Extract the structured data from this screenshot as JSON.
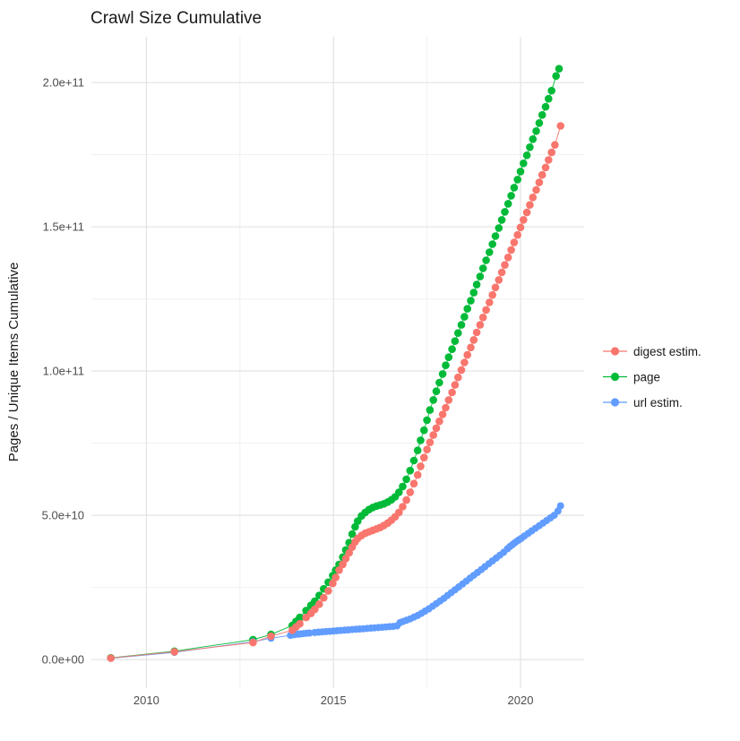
{
  "title": "Crawl Size Cumulative",
  "style": {
    "background": "#ffffff",
    "grid_major_color": "#e3e3e3",
    "grid_minor_color": "#f0f0f0",
    "tick_text_color": "#4d4d4d",
    "title_text_color": "#1a1a1a"
  },
  "chart_data": {
    "type": "scatter",
    "title": "Crawl Size Cumulative",
    "xlabel": "",
    "ylabel": "Pages / Unique Items Cumulative",
    "grid": true,
    "legend_position": "right",
    "xlim": [
      2008.53,
      2021.7
    ],
    "ylim_e9": [
      -9.9,
      215.9
    ],
    "x_ticks": {
      "major": [
        2010,
        2015,
        2020
      ],
      "labels": [
        "2010",
        "2015",
        "2020"
      ],
      "minor": [
        2012.5,
        2017.5
      ]
    },
    "y_ticks": {
      "major_e9": [
        0,
        50,
        100,
        150,
        200
      ],
      "labels": [
        "0.0e+00",
        "5.0e+10",
        "1.0e+11",
        "1.5e+11",
        "2.0e+11"
      ],
      "minor_e9": [
        25,
        75,
        125,
        175
      ]
    },
    "value_unit": "1e9",
    "series": [
      {
        "name": "digest estim.",
        "color": "#F8766D",
        "points_e9": [
          [
            2009.05,
            0.5
          ],
          [
            2010.75,
            2.7
          ],
          [
            2012.85,
            5.9
          ],
          [
            2013.33,
            8.1
          ],
          [
            2013.9,
            10.2
          ],
          [
            2014.0,
            11.3
          ],
          [
            2014.1,
            12.4
          ],
          [
            2014.27,
            14.6
          ],
          [
            2014.4,
            16.0
          ],
          [
            2014.5,
            17.4
          ],
          [
            2014.62,
            19.2
          ],
          [
            2014.74,
            21.4
          ],
          [
            2014.86,
            23.8
          ],
          [
            2014.98,
            26.4
          ],
          [
            2015.06,
            28.5
          ],
          [
            2015.15,
            31.0
          ],
          [
            2015.25,
            33.0
          ],
          [
            2015.33,
            35.0
          ],
          [
            2015.42,
            37.0
          ],
          [
            2015.5,
            39.0
          ],
          [
            2015.58,
            40.8
          ],
          [
            2015.65,
            42.0
          ],
          [
            2015.75,
            43.0
          ],
          [
            2015.85,
            43.8
          ],
          [
            2015.95,
            44.3
          ],
          [
            2016.05,
            44.8
          ],
          [
            2016.15,
            45.3
          ],
          [
            2016.25,
            45.8
          ],
          [
            2016.35,
            46.5
          ],
          [
            2016.45,
            47.3
          ],
          [
            2016.55,
            48.3
          ],
          [
            2016.65,
            49.5
          ],
          [
            2016.75,
            51.0
          ],
          [
            2016.85,
            53.0
          ],
          [
            2016.95,
            55.3
          ],
          [
            2017.05,
            58.0
          ],
          [
            2017.15,
            61.0
          ],
          [
            2017.25,
            64.0
          ],
          [
            2017.33,
            67.0
          ],
          [
            2017.42,
            70.0
          ],
          [
            2017.5,
            72.8
          ],
          [
            2017.58,
            75.3
          ],
          [
            2017.67,
            77.8
          ],
          [
            2017.75,
            80.2
          ],
          [
            2017.83,
            82.6
          ],
          [
            2017.92,
            85.0
          ],
          [
            2018.0,
            87.3
          ],
          [
            2018.08,
            90.0
          ],
          [
            2018.17,
            92.6
          ],
          [
            2018.25,
            95.2
          ],
          [
            2018.33,
            97.8
          ],
          [
            2018.42,
            100.4
          ],
          [
            2018.5,
            103.0
          ],
          [
            2018.58,
            105.6
          ],
          [
            2018.67,
            108.2
          ],
          [
            2018.75,
            110.8
          ],
          [
            2018.83,
            113.4
          ],
          [
            2018.92,
            116.0
          ],
          [
            2019.0,
            118.6
          ],
          [
            2019.08,
            121.2
          ],
          [
            2019.17,
            123.8
          ],
          [
            2019.25,
            126.4
          ],
          [
            2019.33,
            129.0
          ],
          [
            2019.42,
            131.6
          ],
          [
            2019.5,
            134.2
          ],
          [
            2019.58,
            136.8
          ],
          [
            2019.67,
            139.4
          ],
          [
            2019.75,
            142.0
          ],
          [
            2019.83,
            144.6
          ],
          [
            2019.92,
            147.2
          ],
          [
            2020.0,
            149.8
          ],
          [
            2020.08,
            152.4
          ],
          [
            2020.17,
            155.0
          ],
          [
            2020.25,
            157.6
          ],
          [
            2020.33,
            160.2
          ],
          [
            2020.42,
            162.8
          ],
          [
            2020.5,
            165.4
          ],
          [
            2020.58,
            168.0
          ],
          [
            2020.67,
            170.6
          ],
          [
            2020.75,
            173.2
          ],
          [
            2020.83,
            175.8
          ],
          [
            2020.92,
            178.4
          ],
          [
            2021.07,
            185.0
          ]
        ]
      },
      {
        "name": "page",
        "color": "#00BA38",
        "points_e9": [
          [
            2009.05,
            0.6
          ],
          [
            2010.75,
            2.9
          ],
          [
            2012.85,
            6.9
          ],
          [
            2013.33,
            8.7
          ],
          [
            2013.9,
            11.8
          ],
          [
            2014.0,
            13.2
          ],
          [
            2014.1,
            14.6
          ],
          [
            2014.27,
            17.0
          ],
          [
            2014.4,
            18.8
          ],
          [
            2014.5,
            20.2
          ],
          [
            2014.62,
            22.2
          ],
          [
            2014.74,
            24.5
          ],
          [
            2014.86,
            26.8
          ],
          [
            2014.98,
            29.1
          ],
          [
            2015.06,
            31.0
          ],
          [
            2015.15,
            33.0
          ],
          [
            2015.25,
            35.5
          ],
          [
            2015.33,
            38.0
          ],
          [
            2015.42,
            40.5
          ],
          [
            2015.5,
            43.5
          ],
          [
            2015.58,
            46.0
          ],
          [
            2015.65,
            48.0
          ],
          [
            2015.75,
            49.8
          ],
          [
            2015.85,
            51.0
          ],
          [
            2015.95,
            52.0
          ],
          [
            2016.05,
            52.7
          ],
          [
            2016.15,
            53.2
          ],
          [
            2016.25,
            53.6
          ],
          [
            2016.35,
            54.0
          ],
          [
            2016.45,
            54.6
          ],
          [
            2016.55,
            55.4
          ],
          [
            2016.65,
            56.4
          ],
          [
            2016.75,
            58.0
          ],
          [
            2016.85,
            60.0
          ],
          [
            2016.95,
            62.5
          ],
          [
            2017.05,
            65.5
          ],
          [
            2017.15,
            69.0
          ],
          [
            2017.25,
            72.5
          ],
          [
            2017.33,
            76.0
          ],
          [
            2017.42,
            79.5
          ],
          [
            2017.5,
            83.0
          ],
          [
            2017.58,
            86.5
          ],
          [
            2017.67,
            90.0
          ],
          [
            2017.75,
            93.0
          ],
          [
            2017.83,
            96.0
          ],
          [
            2017.92,
            99.0
          ],
          [
            2018.0,
            102.0
          ],
          [
            2018.08,
            104.8
          ],
          [
            2018.17,
            107.6
          ],
          [
            2018.25,
            110.4
          ],
          [
            2018.33,
            113.2
          ],
          [
            2018.42,
            116.0
          ],
          [
            2018.5,
            118.8
          ],
          [
            2018.58,
            121.6
          ],
          [
            2018.67,
            124.4
          ],
          [
            2018.75,
            127.2
          ],
          [
            2018.83,
            130.0
          ],
          [
            2018.92,
            132.8
          ],
          [
            2019.0,
            135.6
          ],
          [
            2019.08,
            138.4
          ],
          [
            2019.17,
            141.2
          ],
          [
            2019.25,
            144.0
          ],
          [
            2019.33,
            146.8
          ],
          [
            2019.42,
            149.6
          ],
          [
            2019.5,
            152.4
          ],
          [
            2019.58,
            155.2
          ],
          [
            2019.67,
            158.0
          ],
          [
            2019.75,
            160.8
          ],
          [
            2019.83,
            163.6
          ],
          [
            2019.92,
            166.4
          ],
          [
            2020.0,
            169.2
          ],
          [
            2020.08,
            172.0
          ],
          [
            2020.17,
            174.8
          ],
          [
            2020.25,
            177.6
          ],
          [
            2020.33,
            180.4
          ],
          [
            2020.42,
            183.2
          ],
          [
            2020.5,
            186.0
          ],
          [
            2020.58,
            188.8
          ],
          [
            2020.67,
            191.6
          ],
          [
            2020.75,
            194.4
          ],
          [
            2020.83,
            197.2
          ],
          [
            2020.95,
            202.3
          ],
          [
            2021.03,
            204.8
          ]
        ]
      },
      {
        "name": "url estim.",
        "color": "#619CFF",
        "points_e9": [
          [
            2009.05,
            0.45
          ],
          [
            2010.75,
            2.5
          ],
          [
            2012.85,
            6.2
          ],
          [
            2013.33,
            7.4
          ],
          [
            2013.85,
            8.4
          ],
          [
            2013.95,
            8.6
          ],
          [
            2014.05,
            8.8
          ],
          [
            2014.12,
            8.9
          ],
          [
            2014.2,
            9.0
          ],
          [
            2014.28,
            9.1
          ],
          [
            2014.36,
            9.2
          ],
          [
            2014.5,
            9.4
          ],
          [
            2014.6,
            9.5
          ],
          [
            2014.7,
            9.6
          ],
          [
            2014.8,
            9.7
          ],
          [
            2014.9,
            9.8
          ],
          [
            2015.0,
            9.9
          ],
          [
            2015.1,
            10.0
          ],
          [
            2015.2,
            10.1
          ],
          [
            2015.3,
            10.2
          ],
          [
            2015.4,
            10.3
          ],
          [
            2015.5,
            10.4
          ],
          [
            2015.6,
            10.5
          ],
          [
            2015.7,
            10.6
          ],
          [
            2015.8,
            10.7
          ],
          [
            2015.9,
            10.8
          ],
          [
            2016.0,
            10.9
          ],
          [
            2016.1,
            11.0
          ],
          [
            2016.2,
            11.1
          ],
          [
            2016.3,
            11.2
          ],
          [
            2016.4,
            11.3
          ],
          [
            2016.5,
            11.4
          ],
          [
            2016.6,
            11.5
          ],
          [
            2016.7,
            11.7
          ],
          [
            2016.78,
            12.8
          ],
          [
            2016.86,
            13.2
          ],
          [
            2016.95,
            13.6
          ],
          [
            2017.05,
            14.1
          ],
          [
            2017.15,
            14.7
          ],
          [
            2017.25,
            15.3
          ],
          [
            2017.35,
            16.0
          ],
          [
            2017.45,
            16.8
          ],
          [
            2017.55,
            17.6
          ],
          [
            2017.65,
            18.5
          ],
          [
            2017.75,
            19.4
          ],
          [
            2017.85,
            20.3
          ],
          [
            2017.95,
            21.2
          ],
          [
            2018.05,
            22.2
          ],
          [
            2018.15,
            23.2
          ],
          [
            2018.25,
            24.2
          ],
          [
            2018.35,
            25.2
          ],
          [
            2018.45,
            26.2
          ],
          [
            2018.55,
            27.2
          ],
          [
            2018.65,
            28.2
          ],
          [
            2018.75,
            29.2
          ],
          [
            2018.85,
            30.2
          ],
          [
            2018.95,
            31.2
          ],
          [
            2019.05,
            32.2
          ],
          [
            2019.15,
            33.2
          ],
          [
            2019.25,
            34.2
          ],
          [
            2019.35,
            35.2
          ],
          [
            2019.45,
            36.2
          ],
          [
            2019.55,
            37.2
          ],
          [
            2019.65,
            38.4
          ],
          [
            2019.72,
            39.2
          ],
          [
            2019.78,
            39.8
          ],
          [
            2019.84,
            40.4
          ],
          [
            2019.9,
            41.0
          ],
          [
            2019.96,
            41.5
          ],
          [
            2020.02,
            42.0
          ],
          [
            2020.1,
            42.8
          ],
          [
            2020.2,
            43.7
          ],
          [
            2020.3,
            44.6
          ],
          [
            2020.4,
            45.5
          ],
          [
            2020.5,
            46.4
          ],
          [
            2020.6,
            47.3
          ],
          [
            2020.7,
            48.2
          ],
          [
            2020.8,
            49.1
          ],
          [
            2020.9,
            50.0
          ],
          [
            2021.0,
            51.5
          ],
          [
            2021.07,
            53.3
          ]
        ]
      }
    ],
    "draw_order": [
      "page",
      "url estim.",
      "digest estim."
    ]
  }
}
